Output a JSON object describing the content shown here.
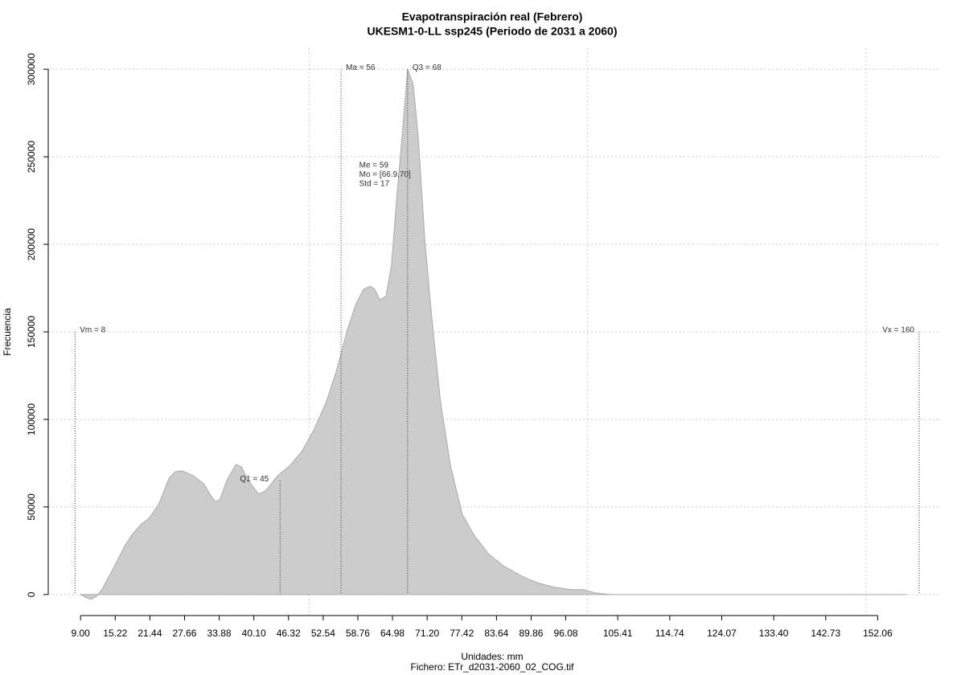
{
  "chart_data": {
    "type": "area",
    "title": "Evapotranspiración real (Febrero)",
    "subtitle": "UKESM1-0-LL ssp245 (Periodo de 2031 a 2060)",
    "x_label": "Unidades: mm",
    "caption": "Fichero: ETr_d2031-2060_02_COG.tif",
    "y_label": "Frecuencia",
    "color": "#cccccc",
    "line_color": "#aaaaaa",
    "x": [
      9,
      10,
      10.9,
      11.9,
      12.9,
      14.9,
      16.9,
      18.1,
      19.8,
      21.3,
      23,
      24.9,
      26,
      27.3,
      29.2,
      31.1,
      32.4,
      33.1,
      34,
      35.3,
      36.9,
      37.9,
      39,
      40.5,
      41,
      42.2,
      44.4,
      46.5,
      48.7,
      50.8,
      53,
      54.9,
      56.9,
      58.5,
      59.8,
      61,
      61.8,
      62.7,
      63.8,
      64.8,
      65.7,
      66.7,
      67.7,
      68.7,
      69.6,
      70.8,
      72.1,
      73.6,
      75.4,
      77.5,
      79.7,
      82.3,
      85,
      88.4,
      91.3,
      94.1,
      97,
      99.2,
      101.4,
      104.2,
      108.6,
      124.4,
      157.3
    ],
    "values": [
      0,
      -1800,
      -2700,
      -900,
      3200,
      15100,
      27500,
      33500,
      39900,
      43600,
      51400,
      66500,
      70200,
      70600,
      67900,
      63300,
      56400,
      53200,
      54100,
      65600,
      74300,
      72900,
      65600,
      59200,
      57300,
      59200,
      67900,
      73400,
      81600,
      93600,
      109200,
      127500,
      151400,
      166500,
      174300,
      176100,
      174300,
      168300,
      170200,
      188100,
      224800,
      261400,
      300000,
      291300,
      261400,
      201800,
      156000,
      110100,
      73400,
      45900,
      33500,
      22900,
      16100,
      10100,
      6400,
      4100,
      2800,
      2800,
      900,
      0,
      0,
      0,
      0
    ],
    "xlim": [
      3.2,
      163.4
    ],
    "ylim": [
      -12000,
      312000
    ],
    "xticks": [
      {
        "value": 9,
        "label": "9.00"
      },
      {
        "value": 15.22,
        "label": "15.22"
      },
      {
        "value": 21.44,
        "label": "21.44"
      },
      {
        "value": 27.66,
        "label": "27.66"
      },
      {
        "value": 33.88,
        "label": "33.88"
      },
      {
        "value": 40.1,
        "label": "40.10"
      },
      {
        "value": 46.32,
        "label": "46.32"
      },
      {
        "value": 52.54,
        "label": "52.54"
      },
      {
        "value": 58.76,
        "label": "58.76"
      },
      {
        "value": 64.98,
        "label": "64.98"
      },
      {
        "value": 71.2,
        "label": "71.20"
      },
      {
        "value": 77.42,
        "label": "77.42"
      },
      {
        "value": 83.64,
        "label": "83.64"
      },
      {
        "value": 89.86,
        "label": "89.86"
      },
      {
        "value": 96.08,
        "label": "96.08"
      },
      {
        "value": 105.41,
        "label": "105.41"
      },
      {
        "value": 114.74,
        "label": "114.74"
      },
      {
        "value": 124.07,
        "label": "124.07"
      },
      {
        "value": 133.4,
        "label": "133.40"
      },
      {
        "value": 142.73,
        "label": "142.73"
      },
      {
        "value": 152.06,
        "label": "152.06"
      }
    ],
    "yticks": [
      0,
      50000,
      100000,
      150000,
      200000,
      250000,
      300000
    ],
    "x_grid": [
      50,
      100,
      150
    ],
    "grid": true,
    "markers": [
      {
        "label": "Vm = 8",
        "x": 8,
        "y": 150000
      },
      {
        "label": "Q1 = 45",
        "x": 44.8,
        "y": 65000
      },
      {
        "label": "Ma = 56",
        "x": 55.75,
        "y": 300000
      },
      {
        "label": "Q3 = 68",
        "x": 67.7,
        "y": 300000
      },
      {
        "label": "Vx = 160",
        "x": 159.5,
        "y": 150000
      }
    ],
    "stats": {
      "x": 59,
      "y": 245000,
      "lines": [
        "Me = 59",
        "Mo = [66.9,70]",
        "Std = 17"
      ]
    }
  }
}
